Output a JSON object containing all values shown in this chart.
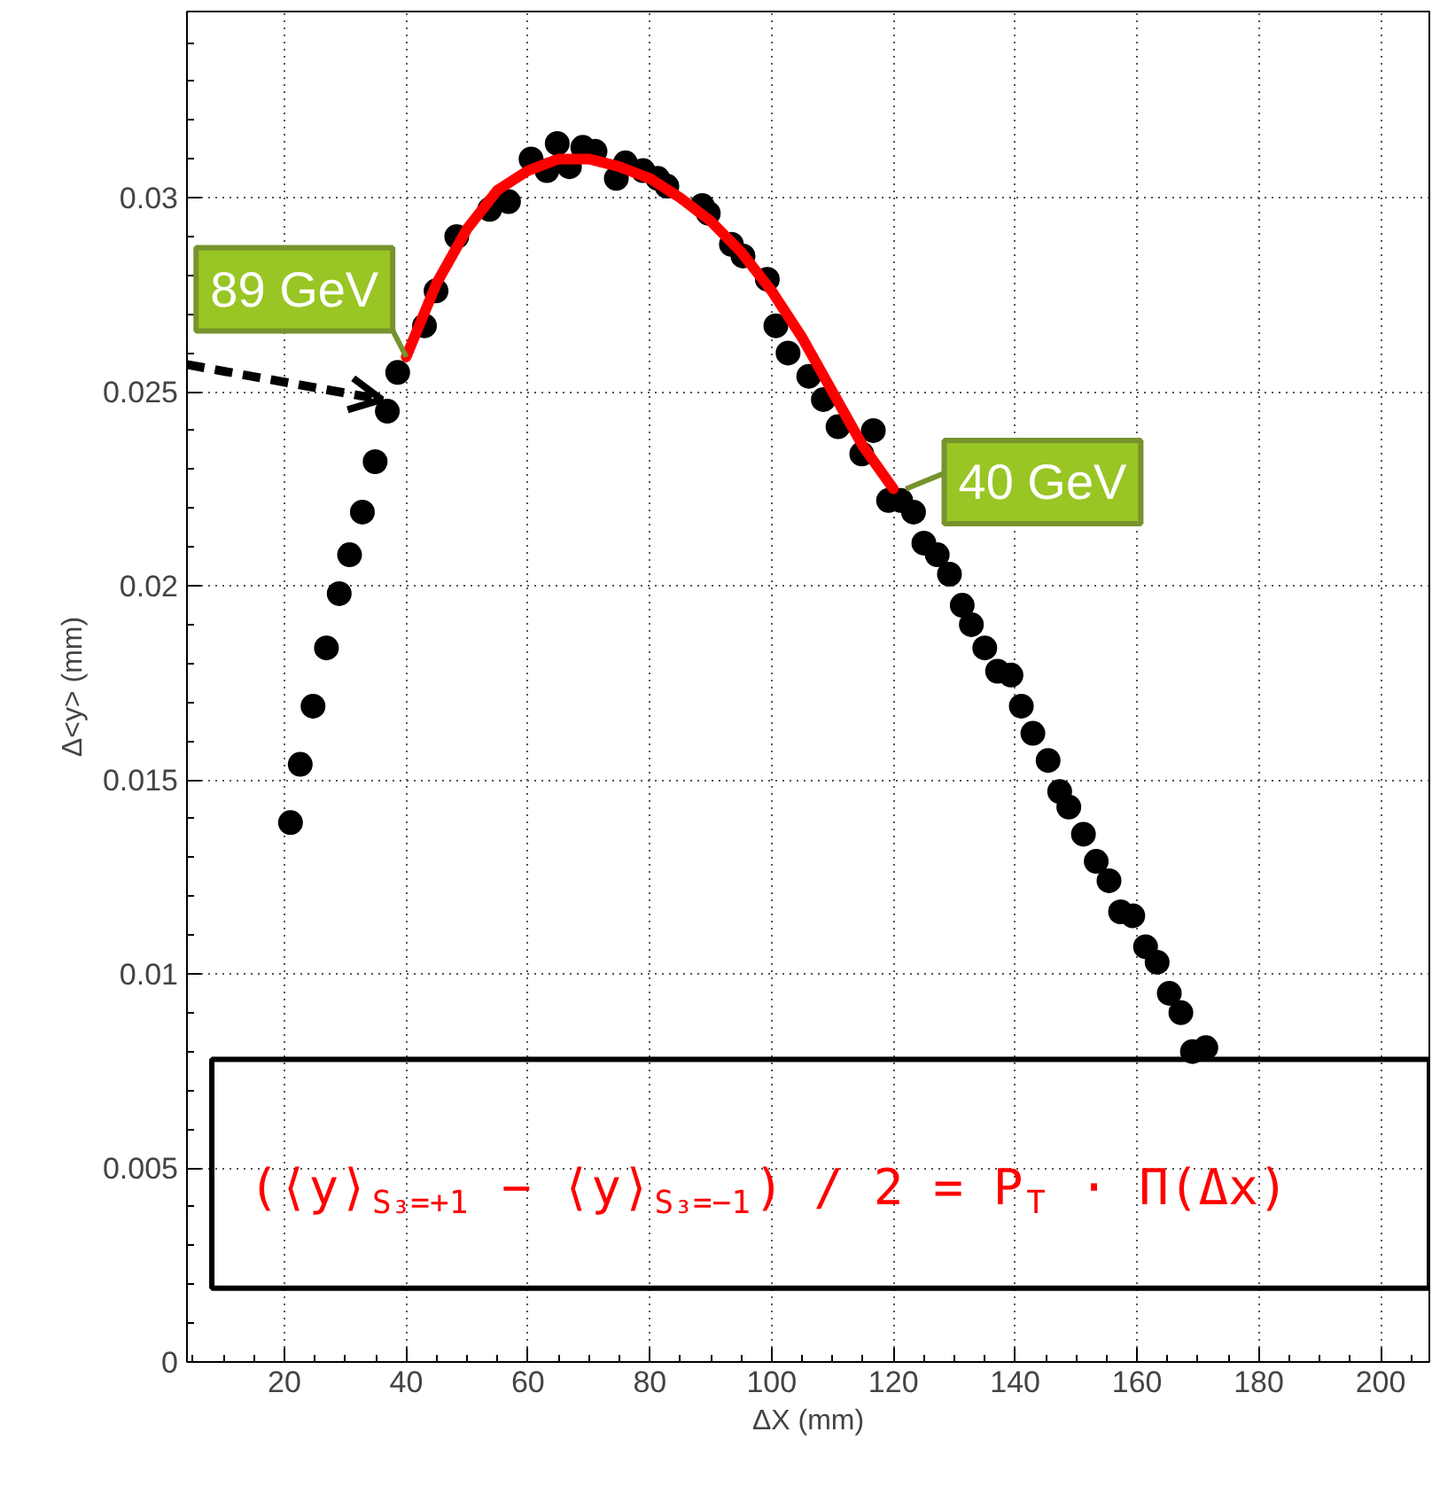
{
  "chart_data": {
    "type": "scatter",
    "xlabel": "ΔX (mm)",
    "ylabel": "Δ<y> (mm)",
    "xlim": [
      4,
      208
    ],
    "ylim": [
      0,
      0.0348
    ],
    "xticks": [
      20,
      40,
      60,
      80,
      100,
      120,
      140,
      160,
      180,
      200
    ],
    "yticks": [
      0,
      0.005,
      0.01,
      0.015,
      0.02,
      0.025,
      0.03
    ],
    "grid": true,
    "marker": "circle",
    "series": [
      {
        "color": "#000000",
        "x": [
          21.0,
          22.6,
          24.7,
          26.9,
          29.0,
          30.7,
          32.8,
          34.9,
          36.9,
          38.6,
          43.0,
          44.9,
          48.3,
          53.7,
          56.8,
          60.5,
          63.1,
          64.8,
          66.8,
          69.0,
          71.0,
          74.5,
          76.0,
          78.9,
          81.3,
          82.8,
          88.6,
          89.6,
          93.4,
          95.3,
          99.3,
          100.7,
          102.7,
          106.1,
          108.5,
          110.9,
          114.8,
          116.7,
          119.2,
          121.2,
          123.3,
          125.0,
          127.2,
          129.2,
          131.3,
          132.8,
          135.0,
          137.1,
          139.3,
          141.0,
          142.9,
          145.4,
          147.3,
          148.8,
          151.2,
          153.3,
          155.4,
          157.3,
          159.3,
          161.4,
          163.3,
          165.3,
          167.2,
          169.1,
          171.3
        ],
        "values": [
          0.0139,
          0.0154,
          0.0169,
          0.0184,
          0.0198,
          0.0208,
          0.0219,
          0.0232,
          0.0245,
          0.0255,
          0.0267,
          0.0276,
          0.029,
          0.0297,
          0.0299,
          0.031,
          0.0307,
          0.0314,
          0.0308,
          0.0313,
          0.0312,
          0.0305,
          0.0309,
          0.0307,
          0.0305,
          0.0303,
          0.0298,
          0.0296,
          0.0288,
          0.0285,
          0.0279,
          0.0267,
          0.026,
          0.0254,
          0.0248,
          0.0241,
          0.0234,
          0.024,
          0.0222,
          0.0222,
          0.0219,
          0.0211,
          0.0208,
          0.0203,
          0.0195,
          0.019,
          0.0184,
          0.0178,
          0.0177,
          0.0169,
          0.0162,
          0.0155,
          0.0147,
          0.0143,
          0.0136,
          0.0129,
          0.0124,
          0.0116,
          0.0115,
          0.0107,
          0.0103,
          0.0095,
          0.009,
          0.008,
          0.0081
        ]
      },
      {
        "type": "line",
        "marker": "none",
        "color": "#ff0000",
        "x": [
          40,
          45,
          50,
          55,
          60,
          65,
          70,
          75,
          80,
          85,
          90,
          95,
          100,
          105,
          110,
          115,
          120
        ],
        "values": [
          0.0259,
          0.0278,
          0.0292,
          0.0302,
          0.0307,
          0.031,
          0.031,
          0.0308,
          0.0305,
          0.03,
          0.0294,
          0.0286,
          0.0276,
          0.0264,
          0.025,
          0.0236,
          0.0225
        ]
      }
    ],
    "annotations": [
      {
        "text": "89 GeV",
        "x": 40,
        "y": 0.0259
      },
      {
        "text": "40 GeV",
        "x": 120,
        "y": 0.0225
      },
      "(⟨y⟩$_{S₃=+1}$ − ⟨y⟩$_{S₃=−1}$) / 2 = P$_{T}$ · Π(Δx)"
    ]
  }
}
